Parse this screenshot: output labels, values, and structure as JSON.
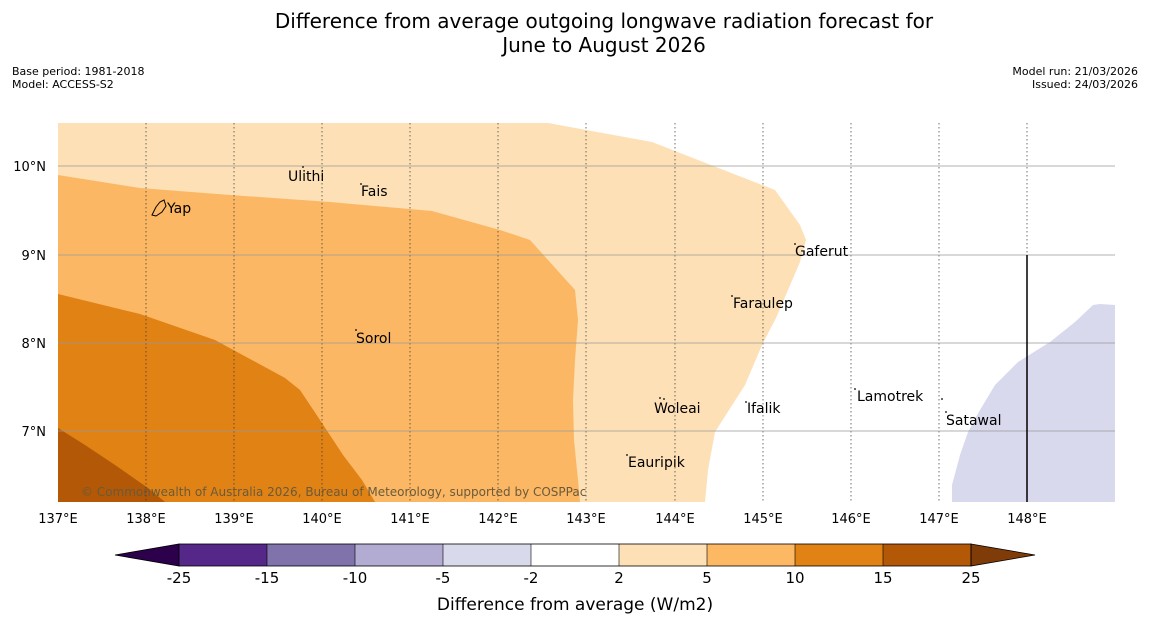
{
  "title": {
    "line1": "Difference from average outgoing longwave radiation forecast for",
    "line2": "June to August 2026"
  },
  "meta": {
    "base_period": "Base period: 1981-2018",
    "model": "Model: ACCESS-S2",
    "model_run": "Model run: 21/03/2026",
    "issued": "Issued: 24/03/2026"
  },
  "map": {
    "lon_ticks": [
      "137°E",
      "138°E",
      "139°E",
      "140°E",
      "141°E",
      "142°E",
      "143°E",
      "144°E",
      "145°E",
      "146°E",
      "147°E",
      "148°E"
    ],
    "lat_ticks": [
      "10°N",
      "9°N",
      "8°N",
      "7°N"
    ],
    "places": {
      "ulithi": "Ulithi",
      "fais": "Fais",
      "yap": "Yap",
      "gaferut": "Gaferut",
      "faraulep": "Faraulep",
      "sorol": "Sorol",
      "lamotrek": "Lamotrek",
      "woleai": "Woleai",
      "ifalik": "Ifalik",
      "satawal": "Satawal",
      "eauripik": "Eauripik"
    },
    "copyright": "© Commonwealth of Australia 2026, Bureau of Meteorology, supported by COSPPac",
    "colors": {
      "c2_5": "#fde0b5",
      "c5_10": "#fbb764",
      "c10_15": "#e08214",
      "c15_25": "#b35806",
      "cm5_m2": "#d8d9ec"
    }
  },
  "colorbar": {
    "labels": [
      "-25",
      "-15",
      "-10",
      "-5",
      "-2",
      "2",
      "5",
      "10",
      "15",
      "25"
    ],
    "colors": [
      "#2d004b",
      "#542788",
      "#8073ac",
      "#b2abd2",
      "#d8daeb",
      "#ffffff",
      "#fee0b6",
      "#fdb863",
      "#e08214",
      "#b35806",
      "#7f3b08"
    ],
    "title": "Difference from average (W/m2)"
  }
}
